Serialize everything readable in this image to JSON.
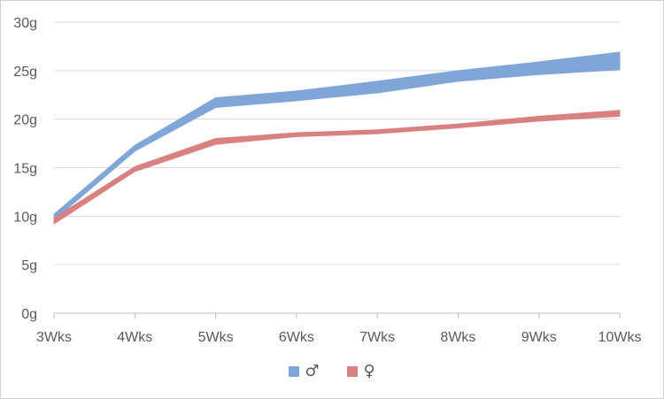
{
  "chart_data": {
    "type": "line",
    "categories": [
      "3Wks",
      "4Wks",
      "5Wks",
      "6Wks",
      "7Wks",
      "8Wks",
      "9Wks",
      "10Wks"
    ],
    "y_ticks": [
      "0g",
      "5g",
      "10g",
      "15g",
      "20g",
      "25g",
      "30g"
    ],
    "ylim": [
      0,
      30
    ],
    "grid": true,
    "legend_position": "bottom",
    "series": [
      {
        "name": "♂",
        "color": "#7FA6D6",
        "upper": [
          10.2,
          17.3,
          22.2,
          22.9,
          23.9,
          25.0,
          25.9,
          26.9
        ],
        "lower": [
          9.6,
          16.7,
          21.2,
          21.9,
          22.7,
          23.9,
          24.6,
          25.1
        ]
      },
      {
        "name": "♀",
        "color": "#D98080",
        "upper": [
          9.8,
          15.1,
          18.0,
          18.6,
          18.9,
          19.5,
          20.3,
          20.9
        ],
        "lower": [
          9.2,
          14.6,
          17.4,
          18.2,
          18.5,
          19.1,
          19.8,
          20.3
        ]
      }
    ]
  }
}
